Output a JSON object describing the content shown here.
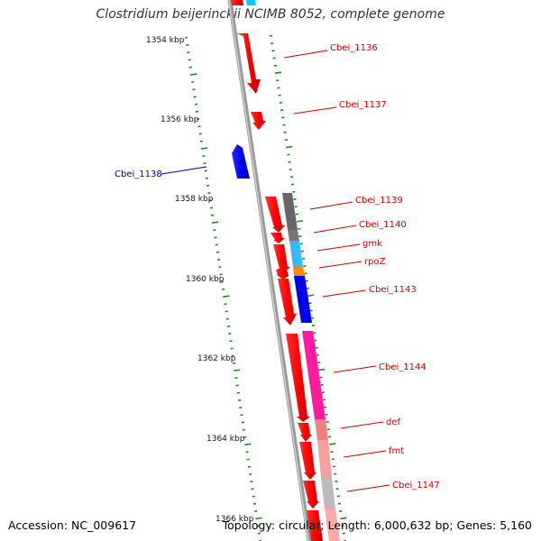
{
  "title": "Clostridium beijerinckii NCIMB 8052, complete genome",
  "footer": {
    "accession": "Accession: NC_009617",
    "topology": "Topology: circular; Length: 6,000,632 bp; Genes: 5,160"
  },
  "colors": {
    "backbone": "#8a8a8a",
    "tick": "#1e8a1e",
    "forward_gene": "#ff0000",
    "reverse_gene": "#0000ee",
    "red_label": "#cc0000",
    "blue_label": "#0000aa"
  },
  "scale_labels": [
    "1354 kbp",
    "1356 kbp",
    "1358 kbp",
    "1360 kbp",
    "1362 kbp",
    "1364 kbp",
    "1366 kbp"
  ],
  "gene_labels": [
    {
      "text": "Cbei_1136",
      "color": "red"
    },
    {
      "text": "Cbei_1137",
      "color": "red"
    },
    {
      "text": "Cbei_1138",
      "color": "blue"
    },
    {
      "text": "Cbei_1139",
      "color": "red"
    },
    {
      "text": "Cbei_1140",
      "color": "red"
    },
    {
      "text": "gmk",
      "color": "red"
    },
    {
      "text": "rpoZ",
      "color": "red"
    },
    {
      "text": "Cbei_1143",
      "color": "red"
    },
    {
      "text": "Cbei_1144",
      "color": "red"
    },
    {
      "text": "def",
      "color": "red"
    },
    {
      "text": "fmt",
      "color": "red"
    },
    {
      "text": "Cbei_1147",
      "color": "red"
    }
  ],
  "category_colors": [
    "#00ccff",
    "#666666",
    "#777777",
    "#33bbff",
    "#ff8800",
    "#0000ee",
    "#ff1aa0",
    "#f08080",
    "#f4a0a0",
    "#bbbbbb",
    "#ffaaaa"
  ]
}
